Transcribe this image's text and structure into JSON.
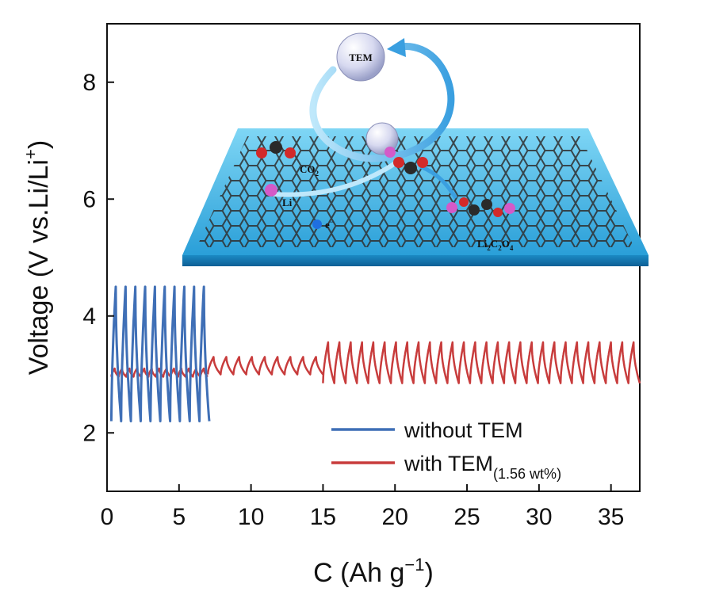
{
  "chart_data": {
    "type": "line",
    "xlabel": "C (Ah g",
    "xlabel_sup": "−1",
    "xlabel_end": ")",
    "ylabel": "Voltage (V vs.Li/Li",
    "ylabel_sup": "+",
    "ylabel_end": ")",
    "xlim": [
      0,
      37
    ],
    "ylim": [
      1,
      9
    ],
    "xticks": [
      0,
      5,
      10,
      15,
      20,
      25,
      30,
      35
    ],
    "yticks": [
      2,
      4,
      6,
      8
    ],
    "legend_position": "bottom-right",
    "series": [
      {
        "name": "without TEM",
        "name_sub": "",
        "color": "#3f6fb6",
        "x_start": 0.3,
        "x_end": 7.1,
        "cycles": 10,
        "low": 2.2,
        "high": 4.5
      },
      {
        "name": "with TEM",
        "name_sub": "(1.56 wt%)",
        "color": "#c83c3c",
        "segments": [
          {
            "x_start": 0.3,
            "x_end": 7.0,
            "cycles": 13,
            "low": 2.96,
            "high": 3.1
          },
          {
            "x_start": 7.0,
            "x_end": 15.0,
            "cycles": 9,
            "low": 3.0,
            "high": 3.3
          },
          {
            "x_start": 15.0,
            "x_end": 37.0,
            "cycles": 28,
            "low": 2.85,
            "high": 3.55
          }
        ]
      }
    ],
    "inset": {
      "icon": "co2-reduction-schematic",
      "labels": {
        "tem": "TEM",
        "co2": "CO",
        "co2_sub": "2",
        "li": "Li",
        "li_sup": "+",
        "electron": "e",
        "electron_sup": "−",
        "product": "Li",
        "product_sub1": "2",
        "product_mid": "C",
        "product_sub2": "2",
        "product_mid2": "O",
        "product_sub3": "4"
      }
    }
  }
}
